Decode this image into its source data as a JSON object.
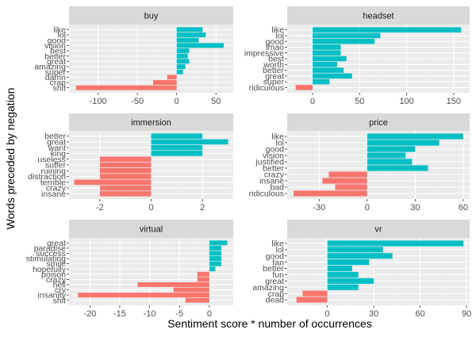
{
  "figure": {
    "ylabel": "Words preceded by negation",
    "xlabel": "Sentiment score * number of occurrences",
    "colors": {
      "positive": "#00BFC4",
      "negative": "#F8766D",
      "panel_bg": "#EBEBEB",
      "strip_bg": "#D9D9D9",
      "grid_major": "#FFFFFF",
      "grid_minor": "#F4F4F4",
      "axis_text": "#4D4D4D",
      "strip_text": "#1A1A1A"
    }
  },
  "chart_data": [
    {
      "type": "bar",
      "orientation": "horizontal",
      "title": "buy",
      "xlim": [
        -137,
        72
      ],
      "xticks": [
        -100,
        -50,
        0,
        50
      ],
      "xticklabels": [
        "-100",
        "-50",
        "0",
        "50"
      ],
      "categories": [
        "like",
        "lol",
        "good",
        "vision",
        "best",
        "better",
        "great",
        "amazing",
        "super",
        "damn",
        "crap",
        "shit"
      ],
      "values": [
        33,
        37,
        28,
        60,
        16,
        14,
        16,
        11,
        8,
        -12,
        -30,
        -128
      ]
    },
    {
      "type": "bar",
      "orientation": "horizontal",
      "title": "headset",
      "xlim": [
        -27,
        167
      ],
      "xticks": [
        0,
        50,
        100,
        150
      ],
      "xticklabels": [
        "0",
        "50",
        "100",
        "150"
      ],
      "categories": [
        "like",
        "lol",
        "good",
        "lmao",
        "impressive",
        "best",
        "worth",
        "better",
        "great",
        "super",
        "ridiculous"
      ],
      "values": [
        158,
        72,
        66,
        30,
        30,
        36,
        26,
        33,
        42,
        18,
        -18
      ]
    },
    {
      "type": "bar",
      "orientation": "horizontal",
      "title": "immersion",
      "xlim": [
        -3.2,
        3.2
      ],
      "xticks": [
        -2,
        0,
        2
      ],
      "xticklabels": [
        "-2",
        "0",
        "2"
      ],
      "categories": [
        "better",
        "great",
        "want",
        "king",
        "useless",
        "suffer",
        "ruining",
        "distraction",
        "terrible",
        "crazy",
        "insane"
      ],
      "values": [
        2,
        3,
        2,
        2,
        -2,
        -2,
        -2,
        -2,
        -3,
        -2,
        -2
      ]
    },
    {
      "type": "bar",
      "orientation": "horizontal",
      "title": "price",
      "xlim": [
        -50,
        64
      ],
      "xticks": [
        -30,
        0,
        30,
        60
      ],
      "xticklabels": [
        "-30",
        "0",
        "30",
        "60"
      ],
      "categories": [
        "like",
        "lol",
        "good",
        "vision",
        "justified",
        "better",
        "crazy",
        "insane",
        "bad",
        "ridiculous"
      ],
      "values": [
        60,
        45,
        30,
        24,
        28,
        38,
        -24,
        -28,
        -20,
        -46
      ]
    },
    {
      "type": "bar",
      "orientation": "horizontal",
      "title": "virtual",
      "xlim": [
        -23.5,
        4
      ],
      "xticks": [
        -20,
        -15,
        -10,
        -5,
        0
      ],
      "xticklabels": [
        "-20",
        "-15",
        "-10",
        "-5",
        "0"
      ],
      "categories": [
        "great",
        "paradise",
        "success",
        "stimulating",
        "smile",
        "hopefully",
        "poison",
        "crazy",
        "hell",
        "cry",
        "insanity",
        "shit"
      ],
      "values": [
        3,
        2,
        2,
        2,
        2,
        1,
        -2,
        -2,
        -12,
        -6,
        -22,
        -4
      ]
    },
    {
      "type": "bar",
      "orientation": "horizontal",
      "title": "vr",
      "xlim": [
        -26,
        92
      ],
      "xticks": [
        0,
        30,
        60,
        90
      ],
      "xticklabels": [
        "0",
        "30",
        "60",
        "90"
      ],
      "categories": [
        "like",
        "lol",
        "good",
        "fan",
        "better",
        "fun",
        "great",
        "amazing",
        "crap",
        "dead"
      ],
      "values": [
        88,
        36,
        42,
        27,
        16,
        20,
        30,
        20,
        -16,
        -20
      ]
    }
  ]
}
